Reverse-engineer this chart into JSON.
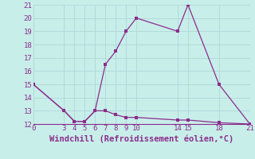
{
  "xlabel": "Windchill (Refroidissement éolien,°C)",
  "line1_x": [
    0,
    3,
    4,
    5,
    6,
    7,
    8,
    9,
    10,
    14,
    15,
    18,
    21
  ],
  "line1_y": [
    15,
    13,
    12.2,
    12.2,
    13,
    16.5,
    17.5,
    19,
    20,
    19,
    21,
    15,
    12
  ],
  "line2_x": [
    0,
    3,
    4,
    5,
    6,
    7,
    8,
    9,
    10,
    14,
    15,
    18,
    21
  ],
  "line2_y": [
    15,
    13,
    12.2,
    12.2,
    13,
    13,
    12.7,
    12.5,
    12.5,
    12.3,
    12.3,
    12.1,
    12
  ],
  "line_color": "#8B2D8B",
  "bg_color": "#c8eeea",
  "grid_color": "#b0dada",
  "xlim": [
    0,
    21
  ],
  "ylim": [
    12,
    21
  ],
  "xticks": [
    0,
    3,
    4,
    5,
    6,
    7,
    8,
    9,
    10,
    14,
    15,
    18,
    21
  ],
  "yticks": [
    12,
    13,
    14,
    15,
    16,
    17,
    18,
    19,
    20,
    21
  ],
  "tick_label_color": "#8B2D8B",
  "tick_label_fontsize": 6.5,
  "xlabel_fontsize": 7.5,
  "xlabel_color": "#8B2D8B",
  "marker_size": 2.5
}
